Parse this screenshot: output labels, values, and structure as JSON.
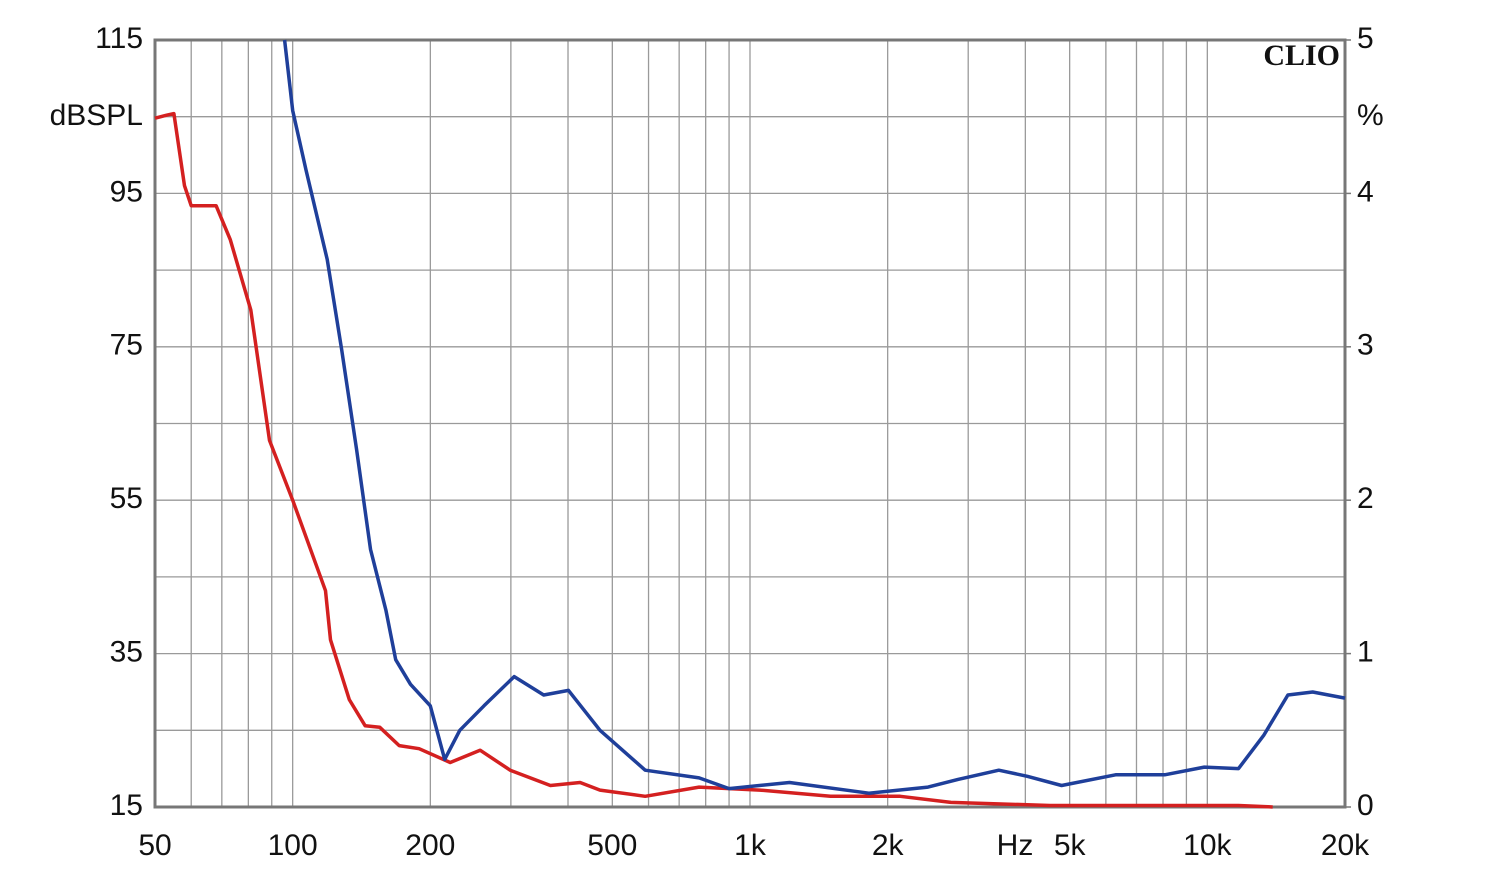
{
  "chart_data": {
    "type": "line",
    "brand": "CLIO",
    "y_label": "dBSPL",
    "y2_label": "%",
    "x_label": "Hz",
    "xscale": "log",
    "xlim": [
      50,
      20000
    ],
    "xticks": [
      50,
      100,
      200,
      500,
      {
        "value": 1000,
        "label": "1k"
      },
      {
        "value": 2000,
        "label": "2k"
      },
      {
        "value": 5000,
        "label": "5k"
      },
      {
        "value": 10000,
        "label": "10k"
      },
      {
        "value": 20000,
        "label": "20k"
      }
    ],
    "xgrid": [
      60,
      70,
      80,
      90,
      300,
      400,
      600,
      700,
      800,
      900,
      3000,
      4000,
      6000,
      7000,
      8000,
      9000
    ],
    "ylim": [
      15,
      115
    ],
    "yticks": [
      15,
      35,
      55,
      75,
      95,
      115
    ],
    "ygrid": [
      25,
      45,
      65,
      85,
      105
    ],
    "y2lim": [
      0,
      5
    ],
    "y2ticks": [
      0,
      1,
      2,
      3,
      4,
      5
    ],
    "grid": true,
    "series": [
      {
        "name": "red",
        "color": "#d42020",
        "axis": "y2",
        "x": [
          50,
          53,
          55,
          58,
          60,
          68,
          73,
          81,
          89,
          100,
          118,
          121,
          133,
          144,
          155,
          171,
          189,
          221,
          257,
          299,
          366,
          425,
          470,
          590,
          774,
          1050,
          1500,
          2130,
          2750,
          4530,
          7460,
          11700,
          13900
        ],
        "values": [
          4.49,
          4.51,
          4.52,
          4.05,
          3.92,
          3.92,
          3.7,
          3.24,
          2.39,
          2.0,
          1.41,
          1.09,
          0.7,
          0.53,
          0.52,
          0.4,
          0.38,
          0.29,
          0.37,
          0.24,
          0.14,
          0.16,
          0.11,
          0.07,
          0.13,
          0.11,
          0.07,
          0.07,
          0.03,
          0.01,
          0.01,
          0.01,
          0
        ]
      },
      {
        "name": "blue",
        "color": "#1f3f9a",
        "axis": "y2",
        "x": [
          96,
          100,
          107,
          119,
          128,
          138,
          148,
          160,
          168,
          181,
          200,
          215,
          232,
          262,
          305,
          354,
          401,
          470,
          590,
          774,
          900,
          1220,
          1820,
          2450,
          2850,
          3500,
          4040,
          4800,
          6300,
          8070,
          9850,
          11700,
          13300,
          15000,
          17000,
          20000
        ],
        "values": [
          5.0,
          4.54,
          4.15,
          3.57,
          2.98,
          2.33,
          1.68,
          1.28,
          0.96,
          0.8,
          0.66,
          0.31,
          0.5,
          0.66,
          0.85,
          0.73,
          0.76,
          0.5,
          0.24,
          0.19,
          0.12,
          0.16,
          0.09,
          0.13,
          0.18,
          0.24,
          0.2,
          0.14,
          0.21,
          0.21,
          0.26,
          0.25,
          0.47,
          0.73,
          0.75,
          0.71
        ]
      }
    ]
  }
}
